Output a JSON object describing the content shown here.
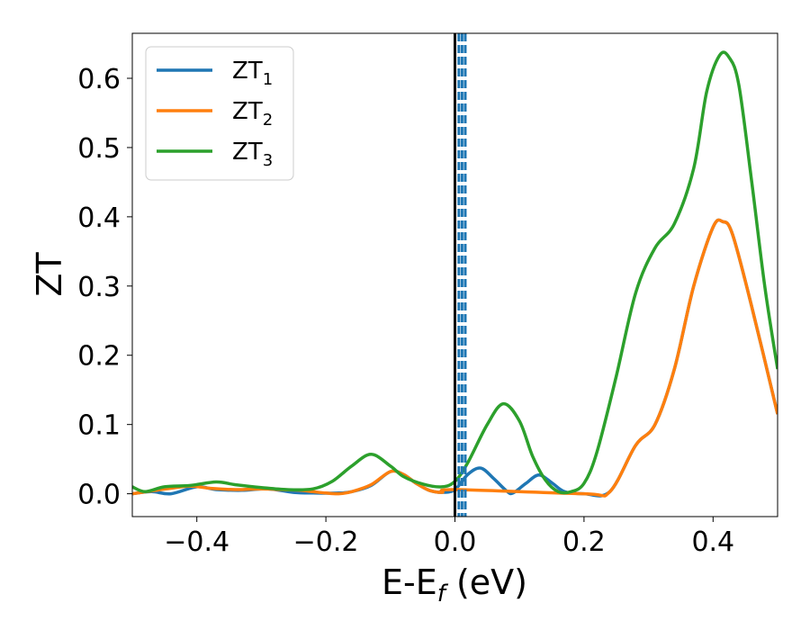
{
  "chart_data": {
    "type": "line",
    "xlabel_main": "E-E",
    "xlabel_sub": "f",
    "xlabel_unit": " (eV)",
    "ylabel": "ZT",
    "xlim": [
      -0.5,
      0.5
    ],
    "ylim": [
      -0.033,
      0.665
    ],
    "x_ticks": [
      -0.4,
      -0.2,
      0.0,
      0.2,
      0.4
    ],
    "x_tick_labels": [
      "−0.4",
      "−0.2",
      "0.0",
      "0.2",
      "0.4"
    ],
    "y_ticks": [
      0.0,
      0.1,
      0.2,
      0.3,
      0.4,
      0.5,
      0.6
    ],
    "y_tick_labels": [
      "0.0",
      "0.1",
      "0.2",
      "0.3",
      "0.4",
      "0.5",
      "0.6"
    ],
    "grid": false,
    "legend_position": "top-left",
    "reference_lines": [
      {
        "x": 0.0,
        "color": "#000000",
        "style": "solid"
      },
      {
        "x": 0.006,
        "color": "#1f77b4",
        "style": "dashed"
      },
      {
        "x": 0.011,
        "color": "#1f77b4",
        "style": "dashed"
      },
      {
        "x": 0.016,
        "color": "#1f77b4",
        "style": "dashed"
      }
    ],
    "series": [
      {
        "name": "ZT",
        "name_sub": "1",
        "color": "#1f77b4",
        "points": [
          [
            -0.5,
            0.0
          ],
          [
            -0.47,
            0.003
          ],
          [
            -0.44,
            0.0
          ],
          [
            -0.4,
            0.01
          ],
          [
            -0.37,
            0.006
          ],
          [
            -0.33,
            0.005
          ],
          [
            -0.29,
            0.007
          ],
          [
            -0.25,
            0.002
          ],
          [
            -0.22,
            0.001
          ],
          [
            -0.18,
            0.001
          ],
          [
            -0.16,
            0.003
          ],
          [
            -0.13,
            0.012
          ],
          [
            -0.1,
            0.032
          ],
          [
            -0.08,
            0.028
          ],
          [
            -0.06,
            0.015
          ],
          [
            -0.04,
            0.005
          ],
          [
            -0.02,
            0.002
          ],
          [
            0.0,
            0.006
          ],
          [
            0.02,
            0.028
          ],
          [
            0.04,
            0.037
          ],
          [
            0.06,
            0.022
          ],
          [
            0.08,
            0.004
          ],
          [
            0.09,
            0.001
          ],
          [
            0.11,
            0.015
          ],
          [
            0.13,
            0.027
          ],
          [
            0.15,
            0.016
          ],
          [
            0.17,
            0.003
          ],
          [
            0.2,
            0.0
          ],
          [
            0.24,
            0.003
          ],
          [
            0.28,
            0.07
          ],
          [
            0.31,
            0.1
          ],
          [
            0.34,
            0.18
          ],
          [
            0.37,
            0.3
          ],
          [
            0.4,
            0.385
          ],
          [
            0.415,
            0.393
          ],
          [
            0.43,
            0.375
          ],
          [
            0.46,
            0.27
          ],
          [
            0.5,
            0.115
          ]
        ]
      },
      {
        "name": "ZT",
        "name_sub": "2",
        "color": "#ff7f0e",
        "points": [
          [
            -0.5,
            0.0
          ],
          [
            -0.47,
            0.004
          ],
          [
            -0.44,
            0.008
          ],
          [
            -0.41,
            0.011
          ],
          [
            -0.38,
            0.008
          ],
          [
            -0.34,
            0.006
          ],
          [
            -0.3,
            0.007
          ],
          [
            -0.27,
            0.006
          ],
          [
            -0.24,
            0.005
          ],
          [
            -0.22,
            0.003
          ],
          [
            -0.2,
            0.001
          ],
          [
            -0.18,
            0.0
          ],
          [
            -0.16,
            0.003
          ],
          [
            -0.13,
            0.013
          ],
          [
            -0.1,
            0.032
          ],
          [
            -0.08,
            0.028
          ],
          [
            -0.06,
            0.015
          ],
          [
            -0.04,
            0.005
          ],
          [
            -0.02,
            0.002
          ],
          [
            0.0,
            0.006
          ],
          [
            0.2,
            0.0
          ],
          [
            0.24,
            0.003
          ],
          [
            0.28,
            0.07
          ],
          [
            0.31,
            0.1
          ],
          [
            0.34,
            0.18
          ],
          [
            0.37,
            0.3
          ],
          [
            0.4,
            0.385
          ],
          [
            0.415,
            0.393
          ],
          [
            0.43,
            0.375
          ],
          [
            0.46,
            0.27
          ],
          [
            0.5,
            0.115
          ]
        ]
      },
      {
        "name": "ZT",
        "name_sub": "3",
        "color": "#2ca02c",
        "points": [
          [
            -0.5,
            0.01
          ],
          [
            -0.48,
            0.003
          ],
          [
            -0.45,
            0.01
          ],
          [
            -0.41,
            0.012
          ],
          [
            -0.37,
            0.017
          ],
          [
            -0.34,
            0.013
          ],
          [
            -0.3,
            0.009
          ],
          [
            -0.26,
            0.006
          ],
          [
            -0.22,
            0.007
          ],
          [
            -0.19,
            0.018
          ],
          [
            -0.16,
            0.04
          ],
          [
            -0.13,
            0.057
          ],
          [
            -0.1,
            0.04
          ],
          [
            -0.08,
            0.025
          ],
          [
            -0.05,
            0.014
          ],
          [
            -0.02,
            0.01
          ],
          [
            0.0,
            0.018
          ],
          [
            0.02,
            0.045
          ],
          [
            0.05,
            0.1
          ],
          [
            0.075,
            0.13
          ],
          [
            0.1,
            0.105
          ],
          [
            0.12,
            0.055
          ],
          [
            0.14,
            0.02
          ],
          [
            0.16,
            0.003
          ],
          [
            0.18,
            0.003
          ],
          [
            0.2,
            0.015
          ],
          [
            0.22,
            0.06
          ],
          [
            0.25,
            0.17
          ],
          [
            0.28,
            0.29
          ],
          [
            0.31,
            0.355
          ],
          [
            0.34,
            0.39
          ],
          [
            0.37,
            0.47
          ],
          [
            0.39,
            0.58
          ],
          [
            0.41,
            0.633
          ],
          [
            0.425,
            0.63
          ],
          [
            0.44,
            0.59
          ],
          [
            0.46,
            0.45
          ],
          [
            0.48,
            0.3
          ],
          [
            0.5,
            0.18
          ]
        ]
      }
    ]
  }
}
